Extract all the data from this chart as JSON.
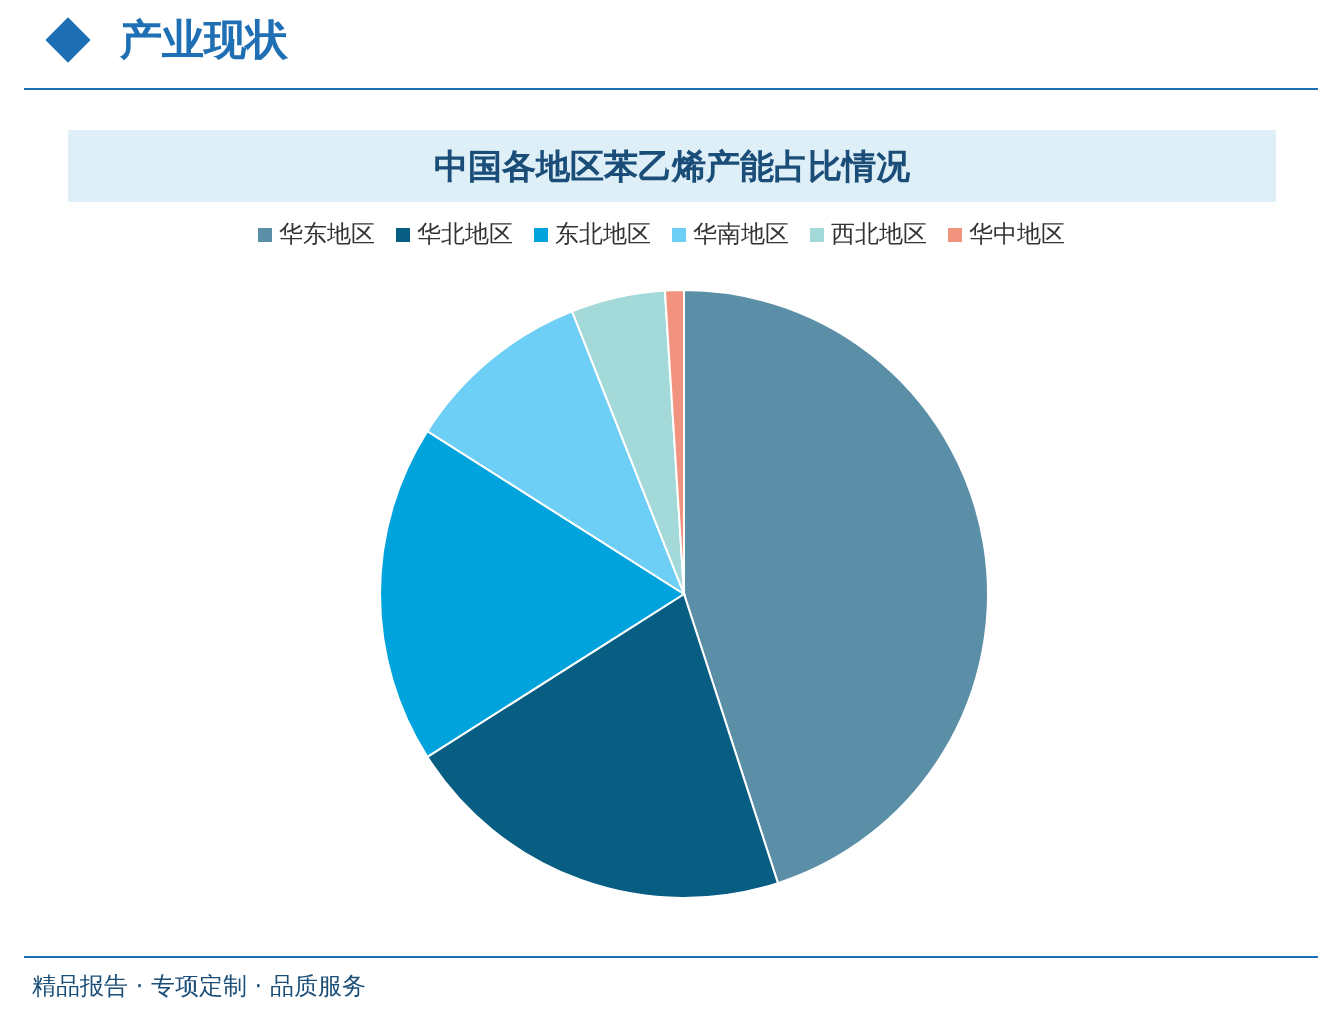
{
  "chart_data": {
    "type": "pie",
    "title": "中国各地区苯乙烯产能占比情况",
    "subtitle": "产业现状",
    "categories": [
      "华东地区",
      "华北地区",
      "东北地区",
      "华南地区",
      "西北地区",
      "华中地区"
    ],
    "values": [
      45,
      21,
      18,
      10,
      5,
      1
    ],
    "colors": [
      "#5b8fa8",
      "#075e82",
      "#00a3dc",
      "#6dcff5",
      "#a3d9d9",
      "#f2937f"
    ],
    "legend": "top",
    "annotations": [
      "精品报告 · 专项定制 · 品质服务"
    ]
  }
}
